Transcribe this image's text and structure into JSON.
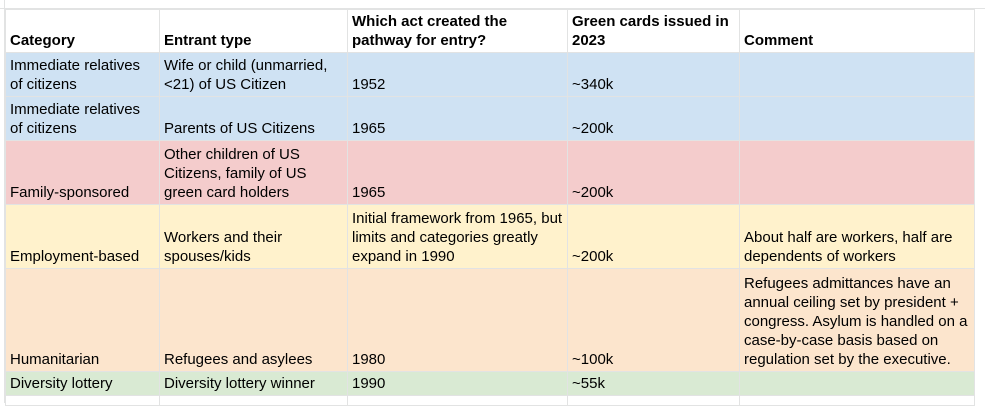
{
  "headers": [
    "Category",
    "Entrant type",
    "Which act created the pathway for entry?",
    "Green cards issued in 2023",
    "Comment"
  ],
  "rows": [
    {
      "category": "Immediate relatives of citizens",
      "entrant": "Wife or child (unmarried, <21) of US Citizen",
      "act": "1952",
      "cards": "~340k",
      "comment": ""
    },
    {
      "category": "Immediate relatives of citizens",
      "entrant": "Parents of US Citizens",
      "act": "1965",
      "cards": "~200k",
      "comment": ""
    },
    {
      "category": "Family-sponsored",
      "entrant": "Other children of US Citizens, family of US green card holders",
      "act": "1965",
      "cards": "~200k",
      "comment": ""
    },
    {
      "category": "Employment-based",
      "entrant": "Workers and their spouses/kids",
      "act": "Initial framework from 1965, but limits and categories greatly expand in 1990",
      "cards": "~200k",
      "comment": "About half are workers, half are dependents of workers"
    },
    {
      "category": "Humanitarian",
      "entrant": "Refugees and asylees",
      "act": "1980",
      "cards": "~100k",
      "comment": "Refugees admittances have an annual ceiling set by president + congress. Asylum is handled on a case-by-case basis based on regulation set by the executive."
    },
    {
      "category": "Diversity lottery",
      "entrant": "Diversity lottery winner",
      "act": "1990",
      "cards": "~55k",
      "comment": ""
    }
  ],
  "colors": {
    "blue": "#cfe2f3",
    "red": "#f4cccc",
    "yellow": "#fff2cc",
    "orange": "#fce5cd",
    "green": "#d9ead3",
    "gridline": "#e2e3e3"
  }
}
